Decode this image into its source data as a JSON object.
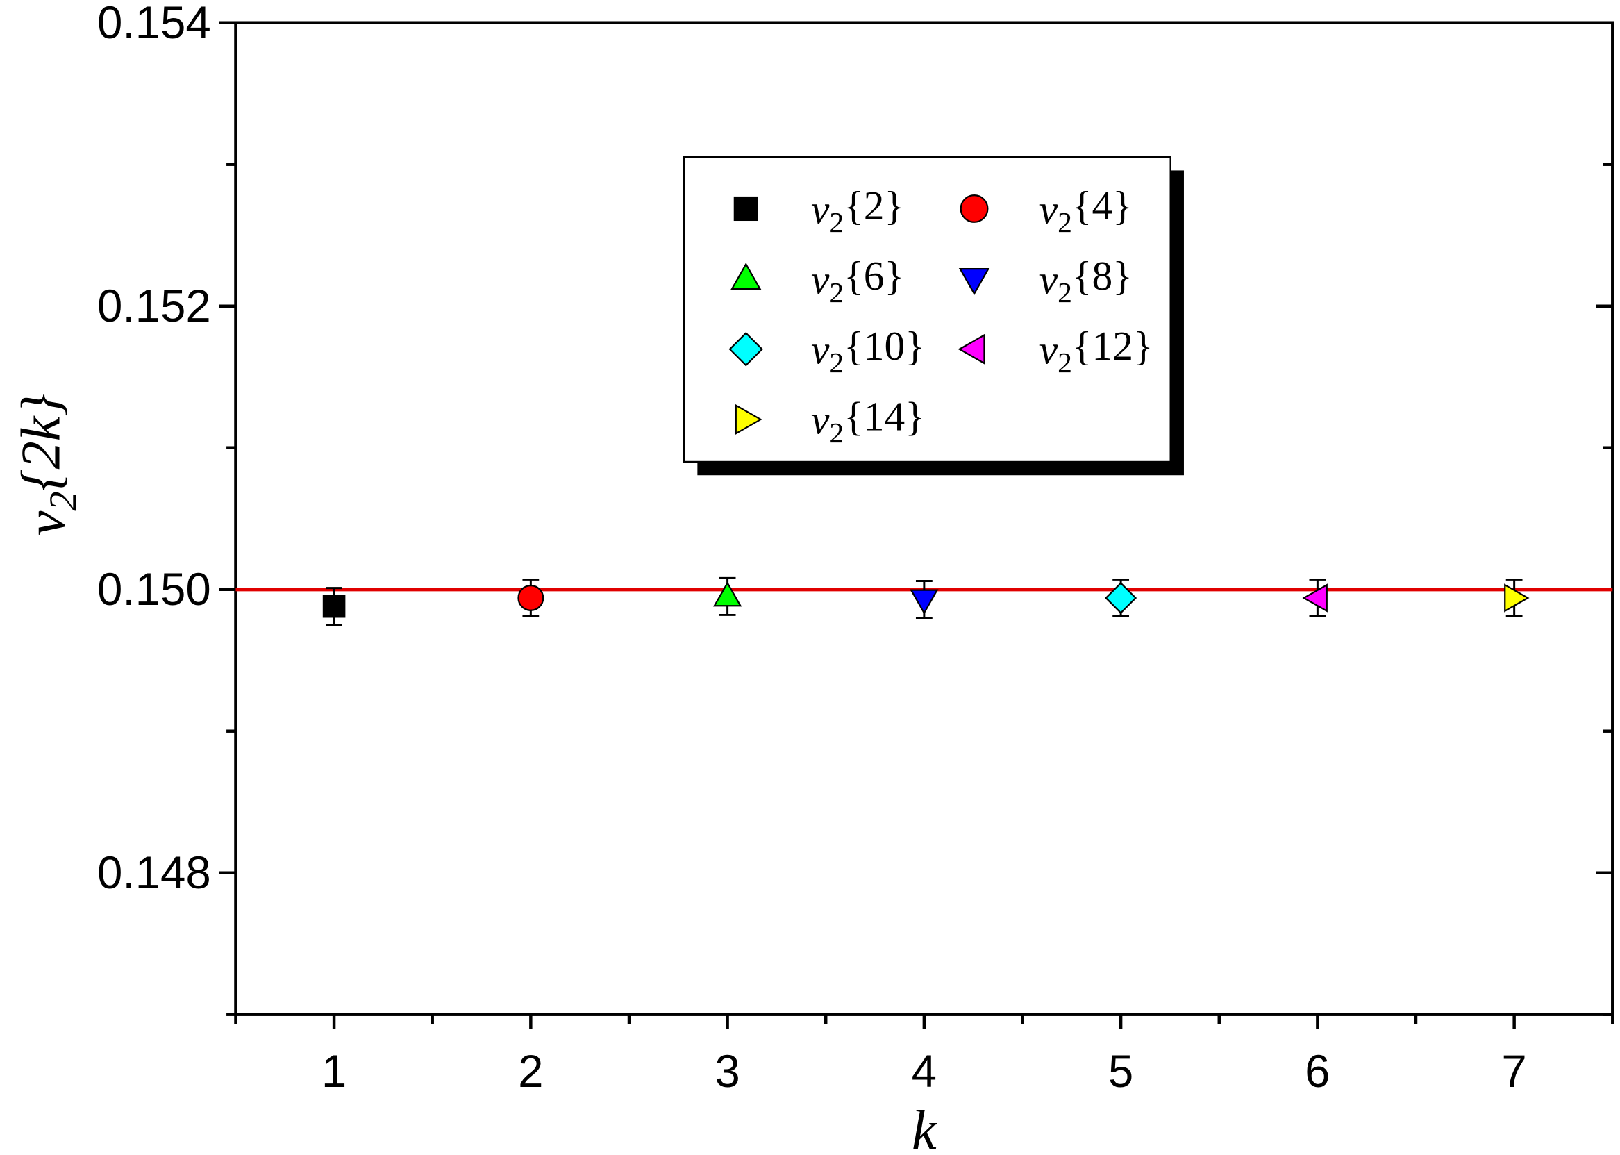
{
  "chart_data": {
    "type": "scatter",
    "x_label": "k",
    "y_label": "v2{2k}",
    "xlim": [
      0.5,
      7.5
    ],
    "ylim": [
      0.147,
      0.154
    ],
    "xticks": [
      1,
      2,
      3,
      4,
      5,
      6,
      7
    ],
    "xminor": [
      0.5,
      1.5,
      2.5,
      3.5,
      4.5,
      5.5,
      6.5,
      7.5
    ],
    "yticks": [
      0.148,
      {
        "value": 0.15,
        "label": "0.150"
      },
      0.152,
      0.154
    ],
    "yminor": [
      0.147,
      0.149,
      0.151,
      0.153
    ],
    "reference_line": {
      "y": 0.15,
      "color": "#e00000"
    },
    "legend": "top-center",
    "series": [
      {
        "name": "v2{2}",
        "color": "#000000",
        "marker": "square",
        "x": [
          1
        ],
        "values": [
          0.14988
        ],
        "errors": [
          0.00013
        ]
      },
      {
        "name": "v2{4}",
        "color": "#ff0000",
        "marker": "circle",
        "x": [
          2
        ],
        "values": [
          0.14994
        ],
        "errors": [
          0.00013
        ]
      },
      {
        "name": "v2{6}",
        "color": "#00ff00",
        "marker": "triangle-up",
        "x": [
          3
        ],
        "values": [
          0.14995
        ],
        "errors": [
          0.00013
        ]
      },
      {
        "name": "v2{8}",
        "color": "#0000ff",
        "marker": "triangle-down",
        "x": [
          4
        ],
        "values": [
          0.14993
        ],
        "errors": [
          0.00013
        ]
      },
      {
        "name": "v2{10}",
        "color": "#00ffff",
        "marker": "diamond",
        "x": [
          5
        ],
        "values": [
          0.14994
        ],
        "errors": [
          0.00013
        ]
      },
      {
        "name": "v2{12}",
        "color": "#ff00ff",
        "marker": "triangle-left",
        "x": [
          6
        ],
        "values": [
          0.14994
        ],
        "errors": [
          0.00013
        ]
      },
      {
        "name": "v2{14}",
        "color": "#ffff00",
        "marker": "triangle-right",
        "x": [
          7
        ],
        "values": [
          0.14994
        ],
        "errors": [
          0.00013
        ]
      }
    ]
  }
}
